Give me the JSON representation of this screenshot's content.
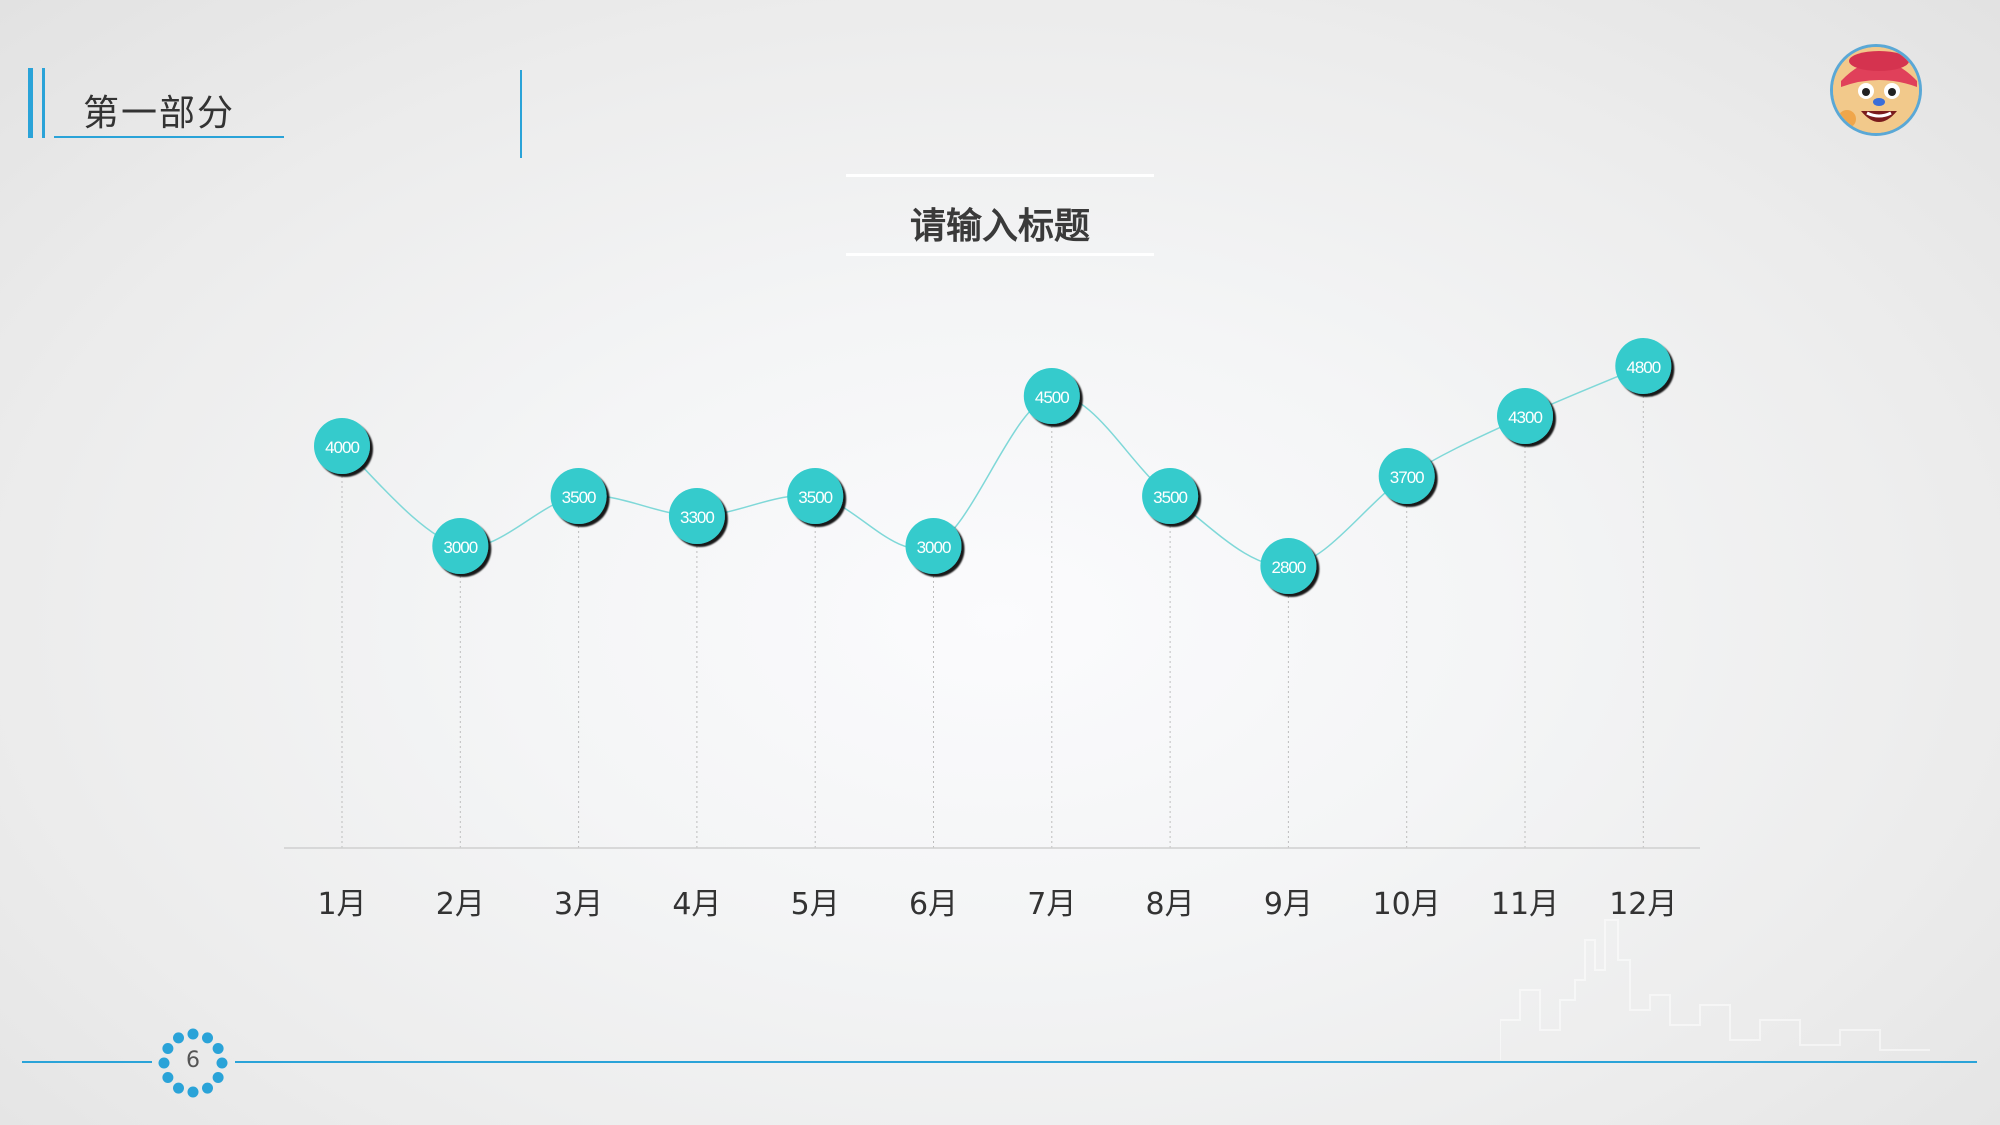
{
  "section": {
    "title": "第一部分"
  },
  "page": {
    "number": "6"
  },
  "colors": {
    "accent": "#2aa3d8",
    "marker": "#34cbcc",
    "line": "#7fd8d8",
    "grid": "#bdbdbd"
  },
  "chart_data": {
    "type": "line",
    "title": "请输入标题",
    "categories": [
      "1月",
      "2月",
      "3月",
      "4月",
      "5月",
      "6月",
      "7月",
      "8月",
      "9月",
      "10月",
      "11月",
      "12月"
    ],
    "series": [
      {
        "values": [
          4000,
          3000,
          3500,
          3300,
          3500,
          3000,
          4500,
          3500,
          2800,
          3700,
          4300,
          4800
        ]
      }
    ],
    "data_labels": true,
    "grid": "vertical dotted drop lines",
    "legend": "none"
  }
}
